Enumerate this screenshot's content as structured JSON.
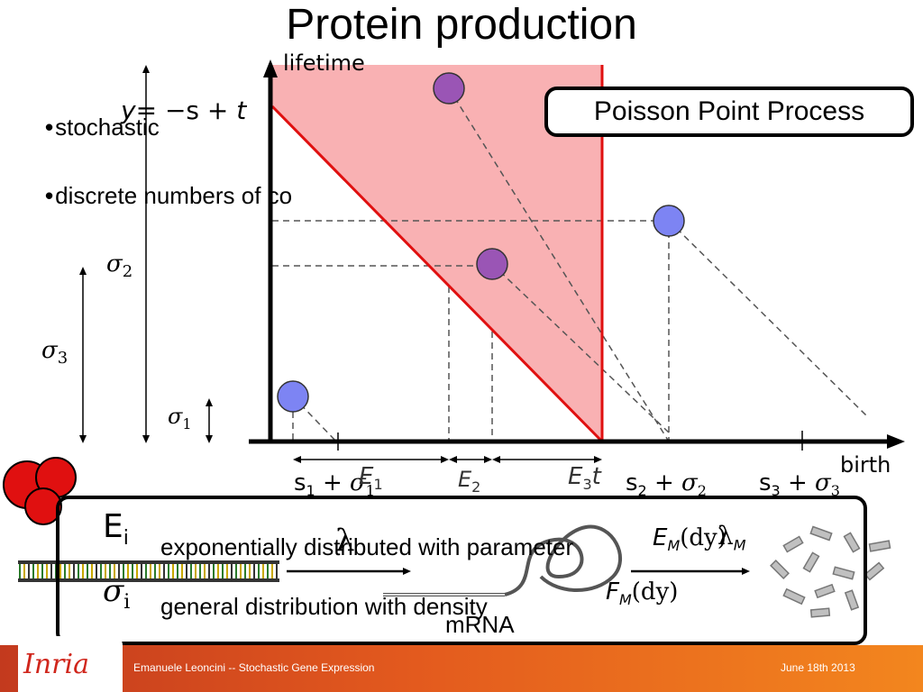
{
  "title": "Protein production",
  "bullets": [
    "stochastic",
    "discrete numbers of co"
  ],
  "bullet_glyph": "•",
  "ppp_label": "Poisson Point Process",
  "axes": {
    "y_label": "lifetime",
    "x_label": "birth"
  },
  "line_label": {
    "y": "y",
    "eq": "= −",
    "s": "s",
    "plus": " + ",
    "t": "t"
  },
  "sigmas": {
    "s2": "σ",
    "s2_sub": "2",
    "s3": "σ",
    "s3_sub": "3",
    "s1": "σ",
    "s1_sub": "1"
  },
  "x_labels": {
    "s1": "s",
    "s1_sub": "1",
    "s1_plus": " + σ",
    "s1_sig": "1",
    "E1": "E",
    "E1_sub": "1",
    "E2": "E",
    "E2_sub": "2",
    "E3": "E",
    "E3_sub": "3",
    "t": "t",
    "s2": "s",
    "s2_sub": "2",
    "s2_plus": " + σ",
    "s2_sig": "2",
    "s3": "s",
    "s3_sub": "3",
    "s3_plus": " + σ",
    "s3_sig": "3"
  },
  "definitions": {
    "Ei": "E",
    "Ei_sub": "i",
    "sigma_i": "σ",
    "sigma_i_sub": "i",
    "lambda": "λ",
    "exp_text": "exponentially distributed with parameter",
    "gen_text": "general distribution with density",
    "lambda_M": "λ",
    "lambda_M_sub": "M",
    "EM": "E",
    "EM_sub": "M",
    "EM_arg": "(dy)",
    "FM": "F",
    "FM_sub": "M",
    "FM_arg": "(dy)",
    "mrna": "mRNA"
  },
  "footer": {
    "left": "Emanuele Leoncini -- Stochastic Gene Expression",
    "right": "June 18th 2013",
    "logo": "Inria"
  },
  "colors": {
    "shaded_region": "#f9b1b3",
    "red_line": "#e01010",
    "blue_point": "#7d84f3",
    "purple_point": "#9a55b5",
    "footer_orange": "#e35a1e"
  }
}
